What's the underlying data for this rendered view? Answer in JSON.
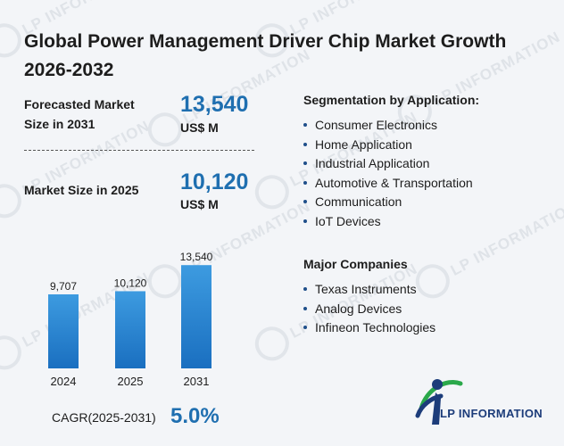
{
  "title": "Global Power Management Driver Chip Market Growth 2026-2032",
  "forecast": {
    "label": "Forecasted Market Size in 2031",
    "value": "13,540",
    "unit": "US$ M"
  },
  "current": {
    "label": "Market Size in 2025",
    "value": "10,120",
    "unit": "US$ M"
  },
  "segmentation": {
    "title": "Segmentation by Application:",
    "items": [
      "Consumer Electronics",
      "Home Application",
      "Industrial Application",
      "Automotive & Transportation",
      "Communication",
      "IoT Devices"
    ]
  },
  "companies": {
    "title": "Major Companies",
    "items": [
      "Texas Instruments",
      "Analog Devices",
      "Infineon Technologies"
    ]
  },
  "cagr": {
    "label": "CAGR(2025-2031)",
    "value": "5.0%"
  },
  "logo": {
    "text": "LP INFORMATION"
  },
  "watermark": "LP INFORMATION",
  "colors": {
    "accent": "#1f6fb0",
    "bar_top": "#3d9be0",
    "bar_bottom": "#1a6fc0",
    "logo_navy": "#1c3c7a",
    "logo_green": "#2aa84a"
  },
  "chart_data": {
    "type": "bar",
    "categories": [
      "2024",
      "2025",
      "2031"
    ],
    "values": [
      9707,
      10120,
      13540
    ],
    "value_labels": [
      "9,707",
      "10,120",
      "13,540"
    ],
    "title": "",
    "xlabel": "",
    "ylabel": "",
    "ylim": [
      0,
      14500
    ],
    "grid": false,
    "legend": "none"
  }
}
